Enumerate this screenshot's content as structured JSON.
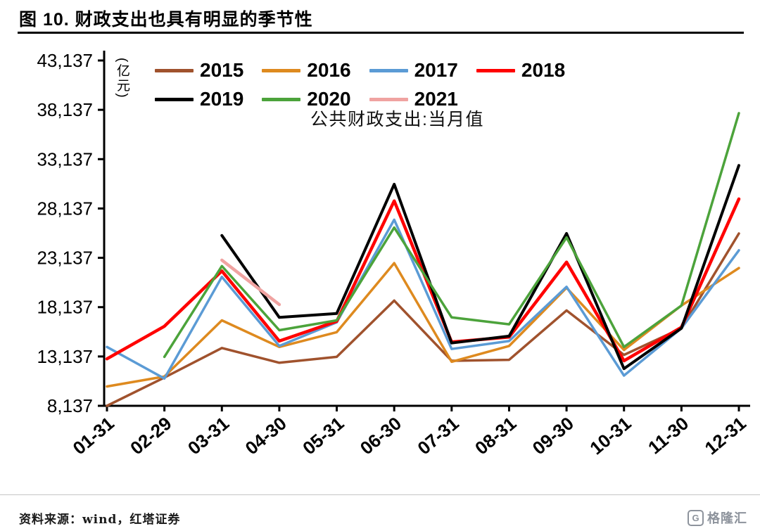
{
  "title": "图 10. 财政支出也具有明显的季节性",
  "source_note": "资料来源：wind，红塔证券",
  "logo": {
    "letter": "G",
    "text": "格隆汇"
  },
  "chart_data": {
    "type": "line",
    "subtitle": "公共财政支出:当月值",
    "unit_label": "(亿元)",
    "categories": [
      "01-31",
      "02-29",
      "03-31",
      "04-30",
      "05-31",
      "06-30",
      "07-31",
      "08-31",
      "09-30",
      "10-31",
      "11-30",
      "12-31"
    ],
    "y_ticks": [
      8137,
      13137,
      18137,
      23137,
      28137,
      33137,
      38137,
      43137
    ],
    "ylim": [
      8137,
      43137
    ],
    "grid": "off",
    "legend_position": "top-inside",
    "legend_rows": [
      [
        "2015",
        "2016",
        "2017",
        "2018"
      ],
      [
        "2019",
        "2020",
        "2021"
      ]
    ],
    "series": [
      {
        "name": "2015",
        "color": "#A0522D",
        "width": 3.5,
        "values": [
          8137,
          11000,
          14000,
          12500,
          13100,
          18800,
          12700,
          12800,
          17800,
          13300,
          16000,
          25600
        ]
      },
      {
        "name": "2016",
        "color": "#DE8A1F",
        "width": 3.5,
        "values": [
          10100,
          11100,
          16800,
          14100,
          15600,
          22600,
          12600,
          14200,
          20100,
          13800,
          18300,
          22100
        ]
      },
      {
        "name": "2017",
        "color": "#5B9BD5",
        "width": 3.5,
        "values": [
          14100,
          10900,
          21200,
          14200,
          16600,
          27000,
          13900,
          14700,
          20200,
          11200,
          16000,
          23900
        ]
      },
      {
        "name": "2018",
        "color": "#FF0000",
        "width": 4.5,
        "values": [
          12900,
          16200,
          21800,
          14700,
          16700,
          28900,
          14600,
          15100,
          22700,
          12700,
          16100,
          29100
        ]
      },
      {
        "name": "2019",
        "color": "#000000",
        "width": 4,
        "values": [
          null,
          null,
          25400,
          17100,
          17500,
          30600,
          14500,
          15200,
          25600,
          11900,
          16000,
          32500
        ]
      },
      {
        "name": "2020",
        "color": "#4CA33B",
        "width": 3.5,
        "values": [
          null,
          13100,
          22300,
          15800,
          16800,
          26200,
          17100,
          16400,
          25200,
          14100,
          18300,
          37800
        ]
      },
      {
        "name": "2021",
        "color": "#F0A3A1",
        "width": 4.5,
        "values": [
          null,
          null,
          22900,
          18400,
          null,
          null,
          null,
          null,
          null,
          null,
          null,
          null
        ]
      }
    ]
  }
}
